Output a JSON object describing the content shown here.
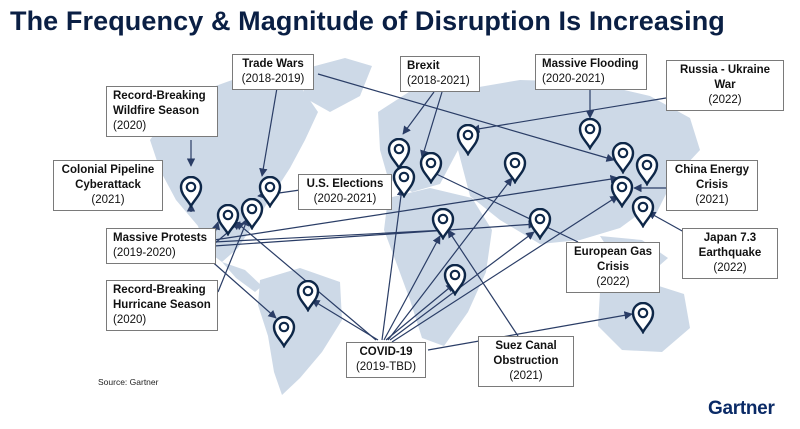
{
  "title": "The Frequency & Magnitude of Disruption Is Increasing",
  "source": "Source: Gartner",
  "brand": "Gartner",
  "colors": {
    "title": "#0a1f44",
    "land": "#cdd9e7",
    "pin": "#0e2748",
    "arrow": "#2a3d66"
  },
  "events": [
    {
      "id": "trade-wars",
      "title": "Trade Wars",
      "dates": "(2018-2019)"
    },
    {
      "id": "brexit",
      "title": "Brexit",
      "dates": "(2018-2021)"
    },
    {
      "id": "massive-flooding",
      "title": "Massive Flooding",
      "dates": "(2020-2021)"
    },
    {
      "id": "russia-ukraine",
      "title": "Russia - Ukraine War",
      "dates": "(2022)"
    },
    {
      "id": "wildfire",
      "title": "Record-Breaking Wildfire Season",
      "dates": "(2020)"
    },
    {
      "id": "colonial-pipeline",
      "title": "Colonial Pipeline Cyberattack",
      "dates": "(2021)"
    },
    {
      "id": "us-elections",
      "title": "U.S. Elections",
      "dates": "(2020-2021)"
    },
    {
      "id": "china-energy",
      "title": "China Energy Crisis",
      "dates": "(2021)"
    },
    {
      "id": "massive-protests",
      "title": "Massive Protests",
      "dates": "(2019-2020)"
    },
    {
      "id": "japan-earthquake",
      "title": "Japan 7.3 Earthquake",
      "dates": "(2022)"
    },
    {
      "id": "european-gas",
      "title": "European Gas Crisis",
      "dates": "(2022)"
    },
    {
      "id": "hurricane",
      "title": "Record-Breaking Hurricane Season",
      "dates": "(2020)"
    },
    {
      "id": "covid",
      "title": "COVID-19",
      "dates": "(2019-TBD)"
    },
    {
      "id": "suez",
      "title": "Suez Canal Obstruction",
      "dates": "(2021)"
    }
  ]
}
